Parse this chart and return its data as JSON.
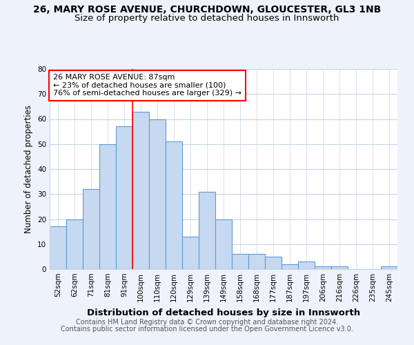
{
  "title1": "26, MARY ROSE AVENUE, CHURCHDOWN, GLOUCESTER, GL3 1NB",
  "title2": "Size of property relative to detached houses in Innsworth",
  "xlabel": "Distribution of detached houses by size in Innsworth",
  "ylabel": "Number of detached properties",
  "categories": [
    "52sqm",
    "62sqm",
    "71sqm",
    "81sqm",
    "91sqm",
    "100sqm",
    "110sqm",
    "120sqm",
    "129sqm",
    "139sqm",
    "149sqm",
    "158sqm",
    "168sqm",
    "177sqm",
    "187sqm",
    "197sqm",
    "206sqm",
    "216sqm",
    "226sqm",
    "235sqm",
    "245sqm"
  ],
  "values": [
    17,
    20,
    32,
    50,
    57,
    63,
    60,
    51,
    13,
    31,
    20,
    6,
    6,
    5,
    2,
    3,
    1,
    1,
    0,
    0,
    1
  ],
  "bar_color": "#c6d9f0",
  "bar_edge_color": "#5b9bd5",
  "bar_linewidth": 0.8,
  "red_line_index": 4.5,
  "ylim": [
    0,
    80
  ],
  "yticks": [
    0,
    10,
    20,
    30,
    40,
    50,
    60,
    70,
    80
  ],
  "annotation_line1": "26 MARY ROSE AVENUE: 87sqm",
  "annotation_line2": "← 23% of detached houses are smaller (100)",
  "annotation_line3": "76% of semi-detached houses are larger (329) →",
  "annotation_box_color": "white",
  "annotation_box_edge": "red",
  "footer1": "Contains HM Land Registry data © Crown copyright and database right 2024.",
  "footer2": "Contains public sector information licensed under the Open Government Licence v3.0.",
  "bg_color": "#eef2fa",
  "plot_bg_color": "white",
  "grid_color": "#c8d4e8",
  "title1_fontsize": 10,
  "title2_fontsize": 9.5,
  "xlabel_fontsize": 9.5,
  "ylabel_fontsize": 8.5,
  "tick_fontsize": 7.5,
  "annot_fontsize": 8,
  "footer_fontsize": 7
}
